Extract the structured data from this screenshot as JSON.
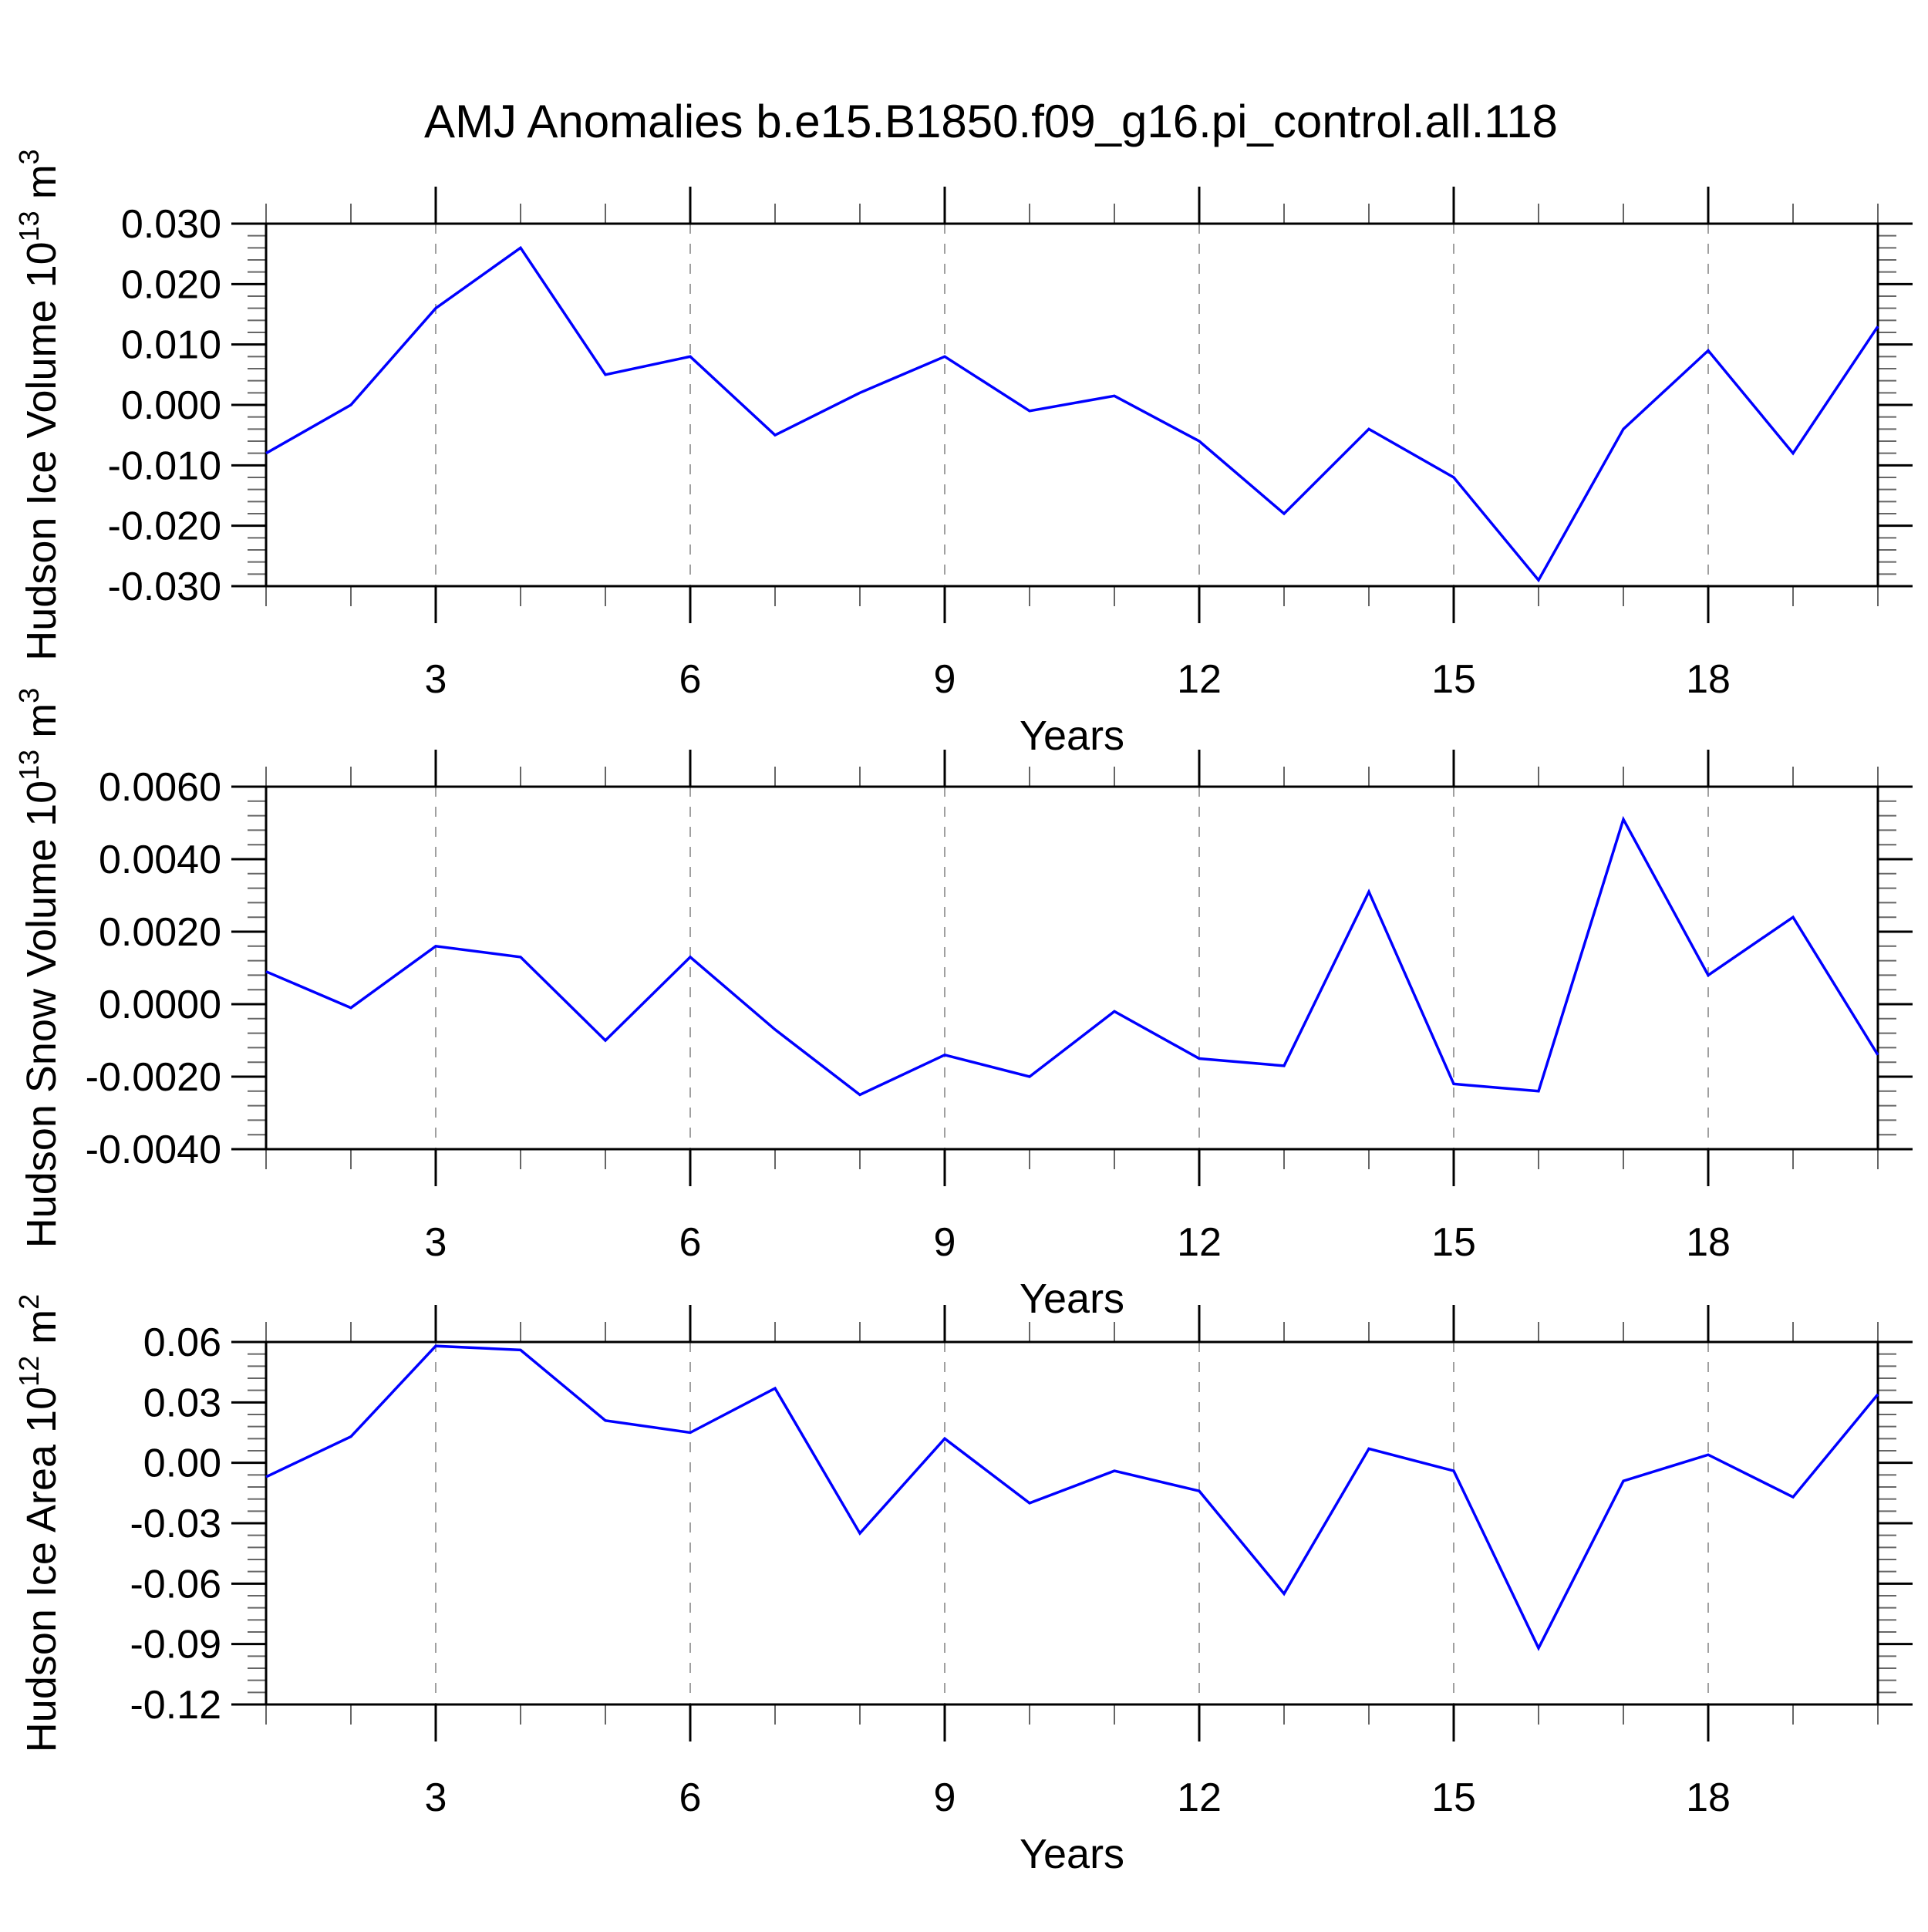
{
  "title": "AMJ Anomalies b.e15.B1850.f09_g16.pi_control.all.118",
  "colors": {
    "line": "#0000ff",
    "axis": "#000000",
    "grid": "#a0a0a0",
    "minor_tick": "#666666",
    "text": "#000000",
    "background": "#ffffff"
  },
  "x_axis": {
    "label": "Years",
    "ticks": [
      3,
      6,
      9,
      12,
      15,
      18
    ],
    "range": [
      1,
      20
    ]
  },
  "chart_data": [
    {
      "type": "line",
      "name": "hudson-ice-volume",
      "ylabel": "Hudson Ice Volume 10^13 m^3",
      "ylabel_parts": {
        "base": "Hudson Ice Volume 10",
        "exp": "13",
        "unit": " m",
        "unit_exp": "3"
      },
      "xlabel": "Years",
      "x": [
        1,
        2,
        3,
        4,
        5,
        6,
        7,
        8,
        9,
        10,
        11,
        12,
        13,
        14,
        15,
        16,
        17,
        18,
        19,
        20
      ],
      "values": [
        -0.008,
        0.0,
        0.016,
        0.026,
        0.005,
        0.008,
        -0.005,
        0.002,
        0.008,
        -0.001,
        0.0015,
        -0.006,
        -0.018,
        -0.004,
        -0.012,
        -0.029,
        -0.004,
        0.009,
        -0.008,
        0.013
      ],
      "ylim": [
        -0.03,
        0.03
      ],
      "ytick_step": 0.01,
      "yminor_step": 0.002,
      "ytick_decimals": 3,
      "xticks": [
        3,
        6,
        9,
        12,
        15,
        18
      ],
      "xlim": [
        1,
        20
      ],
      "grid": "dashed-vertical",
      "legend": "none"
    },
    {
      "type": "line",
      "name": "hudson-snow-volume",
      "ylabel": "Hudson Snow Volume 10^13 m^3",
      "ylabel_parts": {
        "base": "Hudson Snow Volume 10",
        "exp": "13",
        "unit": " m",
        "unit_exp": "3"
      },
      "xlabel": "Years",
      "x": [
        1,
        2,
        3,
        4,
        5,
        6,
        7,
        8,
        9,
        10,
        11,
        12,
        13,
        14,
        15,
        16,
        17,
        18,
        19,
        20
      ],
      "values": [
        0.0009,
        -0.0001,
        0.0016,
        0.0013,
        -0.001,
        0.0013,
        -0.0007,
        -0.0025,
        -0.0014,
        -0.002,
        -0.0002,
        -0.0015,
        -0.0017,
        0.0031,
        -0.0022,
        -0.0024,
        0.0051,
        0.0008,
        0.0024,
        -0.0014
      ],
      "ylim": [
        -0.004,
        0.006
      ],
      "ytick_step": 0.002,
      "yminor_step": 0.0004,
      "ytick_decimals": 4,
      "xticks": [
        3,
        6,
        9,
        12,
        15,
        18
      ],
      "xlim": [
        1,
        20
      ],
      "grid": "dashed-vertical",
      "legend": "none"
    },
    {
      "type": "line",
      "name": "hudson-ice-area",
      "ylabel": "Hudson Ice Area 10^12 m^2",
      "ylabel_parts": {
        "base": "Hudson Ice Area 10",
        "exp": "12",
        "unit": " m",
        "unit_exp": "2"
      },
      "xlabel": "Years",
      "x": [
        1,
        2,
        3,
        4,
        5,
        6,
        7,
        8,
        9,
        10,
        11,
        12,
        13,
        14,
        15,
        16,
        17,
        18,
        19,
        20
      ],
      "values": [
        -0.007,
        0.013,
        0.058,
        0.056,
        0.021,
        0.015,
        0.037,
        -0.035,
        0.012,
        -0.02,
        -0.004,
        -0.014,
        -0.065,
        0.007,
        -0.004,
        -0.092,
        -0.009,
        0.004,
        -0.017,
        0.034
      ],
      "ylim": [
        -0.12,
        0.06
      ],
      "ytick_step": 0.03,
      "yminor_step": 0.006,
      "ytick_decimals": 2,
      "xticks": [
        3,
        6,
        9,
        12,
        15,
        18
      ],
      "xlim": [
        1,
        20
      ],
      "grid": "dashed-vertical",
      "legend": "none"
    }
  ]
}
